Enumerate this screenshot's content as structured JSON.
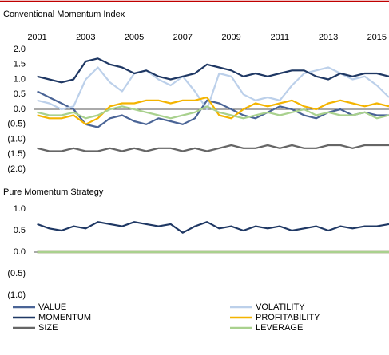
{
  "chart_data": [
    {
      "type": "line",
      "title": "Conventional Momentum Index",
      "x": [
        2001,
        2001.5,
        2002,
        2002.5,
        2003,
        2003.5,
        2004,
        2004.5,
        2005,
        2005.5,
        2006,
        2006.5,
        2007,
        2007.5,
        2008,
        2008.5,
        2009,
        2009.5,
        2010,
        2010.5,
        2011,
        2011.5,
        2012,
        2012.5,
        2013,
        2013.5,
        2014,
        2014.5,
        2015,
        2015.5
      ],
      "xlim": [
        2000.85,
        2015.5
      ],
      "xticks": [
        2001,
        2003,
        2005,
        2007,
        2009,
        2011,
        2013,
        2015
      ],
      "ylim": [
        -2,
        2
      ],
      "yticks": [
        {
          "value": 2,
          "label": "2.0"
        },
        {
          "value": 1.5,
          "label": "1.5"
        },
        {
          "value": 1,
          "label": "1.0"
        },
        {
          "value": 0.5,
          "label": "0.5"
        },
        {
          "value": 0,
          "label": "0.0"
        },
        {
          "value": -0.5,
          "label": "(0.5)"
        },
        {
          "value": -1,
          "label": "(1.0)"
        },
        {
          "value": -1.5,
          "label": "(1.5)"
        },
        {
          "value": -2,
          "label": "(2.0)"
        }
      ],
      "series": [
        {
          "name": "VALUE",
          "color": "#4a6496",
          "values": [
            0.6,
            0.4,
            0.2,
            0.0,
            -0.5,
            -0.6,
            -0.3,
            -0.2,
            -0.4,
            -0.5,
            -0.3,
            -0.4,
            -0.5,
            -0.3,
            0.3,
            0.2,
            0.0,
            -0.2,
            -0.3,
            -0.1,
            0.1,
            0.0,
            -0.2,
            -0.3,
            -0.1,
            0.0,
            -0.2,
            -0.1,
            -0.2,
            -0.2
          ]
        },
        {
          "name": "VOLATILITY",
          "color": "#bcd0ea",
          "values": [
            0.3,
            0.2,
            0.0,
            0.1,
            1.0,
            1.4,
            0.9,
            0.6,
            1.2,
            1.3,
            1.0,
            0.8,
            1.1,
            0.6,
            0.0,
            1.2,
            1.1,
            0.5,
            0.3,
            0.4,
            0.3,
            0.8,
            1.2,
            1.3,
            1.4,
            1.2,
            1.0,
            1.1,
            0.8,
            0.4
          ]
        },
        {
          "name": "MOMENTUM",
          "color": "#1f3864",
          "values": [
            1.1,
            1.0,
            0.9,
            1.0,
            1.6,
            1.7,
            1.5,
            1.4,
            1.2,
            1.3,
            1.1,
            1.0,
            1.1,
            1.2,
            1.5,
            1.4,
            1.3,
            1.1,
            1.2,
            1.1,
            1.2,
            1.3,
            1.3,
            1.1,
            1.0,
            1.2,
            1.1,
            1.2,
            1.2,
            1.1
          ]
        },
        {
          "name": "PROFITABILITY",
          "color": "#f4b400",
          "values": [
            -0.2,
            -0.3,
            -0.3,
            -0.2,
            -0.5,
            -0.3,
            0.1,
            0.2,
            0.2,
            0.3,
            0.3,
            0.2,
            0.3,
            0.3,
            0.4,
            -0.2,
            -0.3,
            0.0,
            0.2,
            0.1,
            0.2,
            0.3,
            0.1,
            0.0,
            0.2,
            0.3,
            0.2,
            0.1,
            0.2,
            0.1
          ]
        },
        {
          "name": "SIZE",
          "color": "#666666",
          "values": [
            -1.3,
            -1.4,
            -1.4,
            -1.3,
            -1.4,
            -1.4,
            -1.3,
            -1.4,
            -1.3,
            -1.4,
            -1.3,
            -1.3,
            -1.4,
            -1.3,
            -1.4,
            -1.3,
            -1.2,
            -1.3,
            -1.3,
            -1.2,
            -1.3,
            -1.2,
            -1.3,
            -1.3,
            -1.2,
            -1.2,
            -1.3,
            -1.2,
            -1.2,
            -1.2
          ]
        },
        {
          "name": "LEVERAGE",
          "color": "#a9d18e",
          "values": [
            -0.1,
            -0.2,
            -0.2,
            -0.1,
            -0.3,
            -0.2,
            0.0,
            0.1,
            0.0,
            -0.1,
            -0.2,
            -0.3,
            -0.2,
            -0.1,
            0.1,
            -0.1,
            -0.2,
            -0.3,
            -0.2,
            -0.1,
            -0.2,
            -0.1,
            0.0,
            -0.2,
            -0.1,
            -0.2,
            -0.2,
            -0.1,
            -0.3,
            -0.2
          ]
        }
      ]
    },
    {
      "type": "line",
      "title": "Pure Momentum Strategy",
      "ylim": [
        -1,
        1
      ],
      "yticks": [
        {
          "value": 1,
          "label": "1.0"
        },
        {
          "value": 0.5,
          "label": "0.5"
        },
        {
          "value": 0,
          "label": "0.0"
        },
        {
          "value": -0.5,
          "label": "(0.5)"
        },
        {
          "value": -1,
          "label": "(1.0)"
        }
      ],
      "series": [
        {
          "values": [
            0,
            0,
            0,
            0,
            0,
            0,
            0,
            0,
            0,
            0,
            0,
            0,
            0,
            0,
            0,
            0,
            0,
            0,
            0,
            0,
            0,
            0,
            0,
            0,
            0,
            0,
            0,
            0,
            0,
            0
          ]
        },
        {
          "values": [
            0,
            0,
            0,
            0,
            0,
            0,
            0,
            0,
            0,
            0,
            0,
            0,
            0,
            0,
            0,
            0,
            0,
            0,
            0,
            0,
            0,
            0,
            0,
            0,
            0,
            0,
            0,
            0,
            0,
            0
          ]
        },
        {
          "values": [
            0.65,
            0.55,
            0.5,
            0.6,
            0.55,
            0.7,
            0.65,
            0.6,
            0.7,
            0.65,
            0.6,
            0.65,
            0.45,
            0.6,
            0.7,
            0.55,
            0.6,
            0.5,
            0.6,
            0.55,
            0.6,
            0.5,
            0.55,
            0.6,
            0.5,
            0.6,
            0.55,
            0.6,
            0.6,
            0.65
          ]
        },
        {
          "values": [
            0,
            0,
            0,
            0,
            0,
            0,
            0,
            0,
            0,
            0,
            0,
            0,
            0,
            0,
            0,
            0,
            0,
            0,
            0,
            0,
            0,
            0,
            0,
            0,
            0,
            0,
            0,
            0,
            0,
            0
          ]
        },
        {
          "values": [
            0,
            0,
            0,
            0,
            0,
            0,
            0,
            0,
            0,
            0,
            0,
            0,
            0,
            0,
            0,
            0,
            0,
            0,
            0,
            0,
            0,
            0,
            0,
            0,
            0,
            0,
            0,
            0,
            0,
            0
          ]
        },
        {
          "values": [
            0,
            0,
            0,
            0,
            0,
            0,
            0,
            0,
            0,
            0,
            0,
            0,
            0,
            0,
            0,
            0,
            0,
            0,
            0,
            0,
            0,
            0,
            0,
            0,
            0,
            0,
            0,
            0,
            0,
            0
          ]
        }
      ]
    }
  ]
}
